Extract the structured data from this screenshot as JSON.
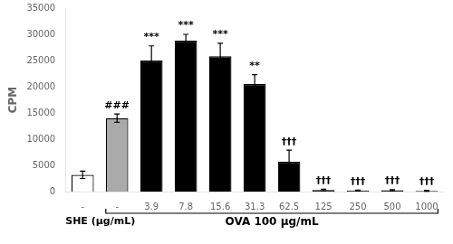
{
  "chart_data": {
    "type": "bar",
    "categories": [
      "-",
      "-",
      "3.9",
      "7.8",
      "15.6",
      "31.3",
      "62.5",
      "125",
      "250",
      "500",
      "1000"
    ],
    "values": [
      3200,
      14000,
      25000,
      28800,
      25800,
      20500,
      5700,
      300,
      200,
      250,
      150
    ],
    "errors": [
      700,
      800,
      2800,
      1200,
      2500,
      1800,
      2200,
      150,
      100,
      120,
      80
    ],
    "colors": [
      "#ffffff",
      "#aaaaaa",
      "#000000",
      "#000000",
      "#000000",
      "#000000",
      "#000000",
      "#000000",
      "#000000",
      "#000000",
      "#000000"
    ],
    "annotations": [
      null,
      "###",
      "***",
      "***",
      "***",
      "**",
      "†††",
      "†††",
      "†††",
      "†††",
      "†††"
    ],
    "ylabel": "CPM",
    "xlabel": "SHE (μg/mL)",
    "group_label": "OVA 100 μg/mL",
    "ylim": [
      0,
      35000
    ],
    "yticks": [
      0,
      5000,
      10000,
      15000,
      20000,
      25000,
      30000,
      35000
    ],
    "grid": false
  }
}
